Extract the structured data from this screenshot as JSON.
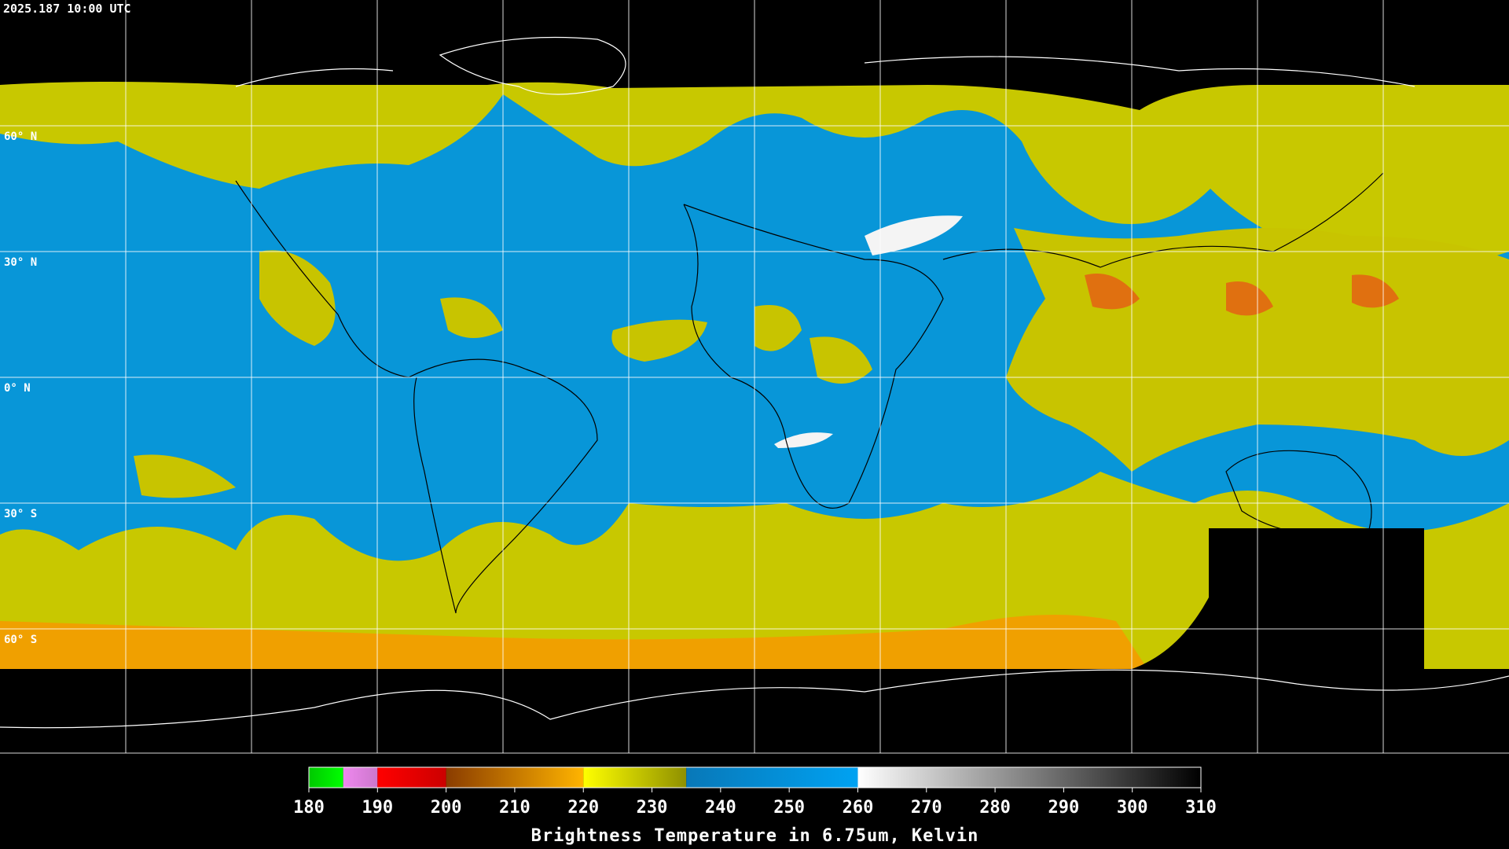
{
  "timestamp": "2025.187 10:00 UTC",
  "lat_labels": [
    "60° N",
    "30° N",
    "0° N",
    "30° S",
    "60° S"
  ],
  "colorbar": {
    "title": "Brightness Temperature in 6.75um, Kelvin",
    "range": [
      180,
      310
    ],
    "ticks": [
      180,
      190,
      200,
      210,
      220,
      230,
      240,
      250,
      260,
      270,
      280,
      290,
      300,
      310
    ],
    "segments": [
      {
        "from": 180,
        "to": 185,
        "colors": [
          "#00c800",
          "#00ff00"
        ]
      },
      {
        "from": 185,
        "to": 190,
        "colors": [
          "#ee88ee",
          "#cc77cc"
        ]
      },
      {
        "from": 190,
        "to": 200,
        "colors": [
          "#ff0000",
          "#cc0000"
        ]
      },
      {
        "from": 200,
        "to": 220,
        "colors": [
          "#8a3c00",
          "#ffb400"
        ]
      },
      {
        "from": 220,
        "to": 235,
        "colors": [
          "#ffff00",
          "#8f9000"
        ]
      },
      {
        "from": 235,
        "to": 260,
        "colors": [
          "#0878b8",
          "#00a2f2"
        ]
      },
      {
        "from": 260,
        "to": 310,
        "colors": [
          "#ffffff",
          "#000000"
        ]
      }
    ]
  }
}
